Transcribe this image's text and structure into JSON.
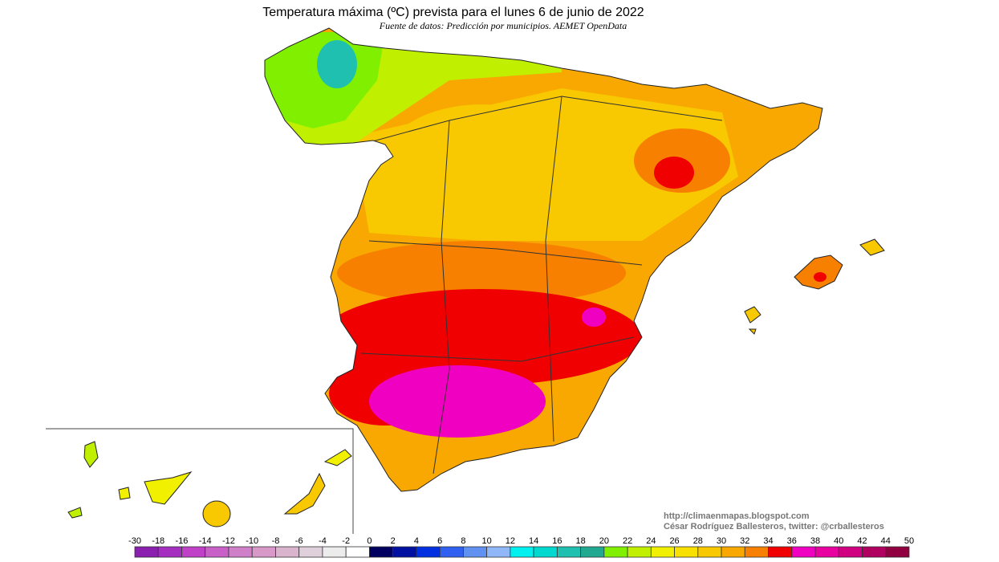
{
  "header": {
    "title": "Temperatura máxima (ºC) prevista para el lunes 6 de junio de 2022",
    "subtitle": "Fuente de datos: Predicción por municipios. AEMET OpenData"
  },
  "credits": {
    "url": "http://climaenmapas.blogspot.com",
    "author": "César Rodríguez Ballesteros, twitter: @crballesteros"
  },
  "colorbar": {
    "ticks": [
      -30,
      -18,
      -16,
      -14,
      -12,
      -10,
      -8,
      -6,
      -4,
      -2,
      0,
      2,
      4,
      6,
      8,
      10,
      12,
      14,
      16,
      18,
      20,
      22,
      24,
      26,
      28,
      30,
      32,
      34,
      36,
      38,
      40,
      42,
      44,
      50
    ],
    "colors": [
      "#8a1fb0",
      "#a42ec0",
      "#c040c8",
      "#c860c8",
      "#d080c8",
      "#d898c8",
      "#dab4cc",
      "#e0d0dc",
      "#ececec",
      "#ffffff",
      "#000060",
      "#0010a0",
      "#0030e0",
      "#3060f0",
      "#6090f0",
      "#90b8f8",
      "#00f0f0",
      "#00d8d0",
      "#20c0b0",
      "#20a890",
      "#80f000",
      "#c0f000",
      "#f0f000",
      "#f8e000",
      "#f8c800",
      "#f8a800",
      "#f88000",
      "#f00000",
      "#f000c0",
      "#e800a0",
      "#d00080",
      "#b00060",
      "#900040"
    ]
  }
}
